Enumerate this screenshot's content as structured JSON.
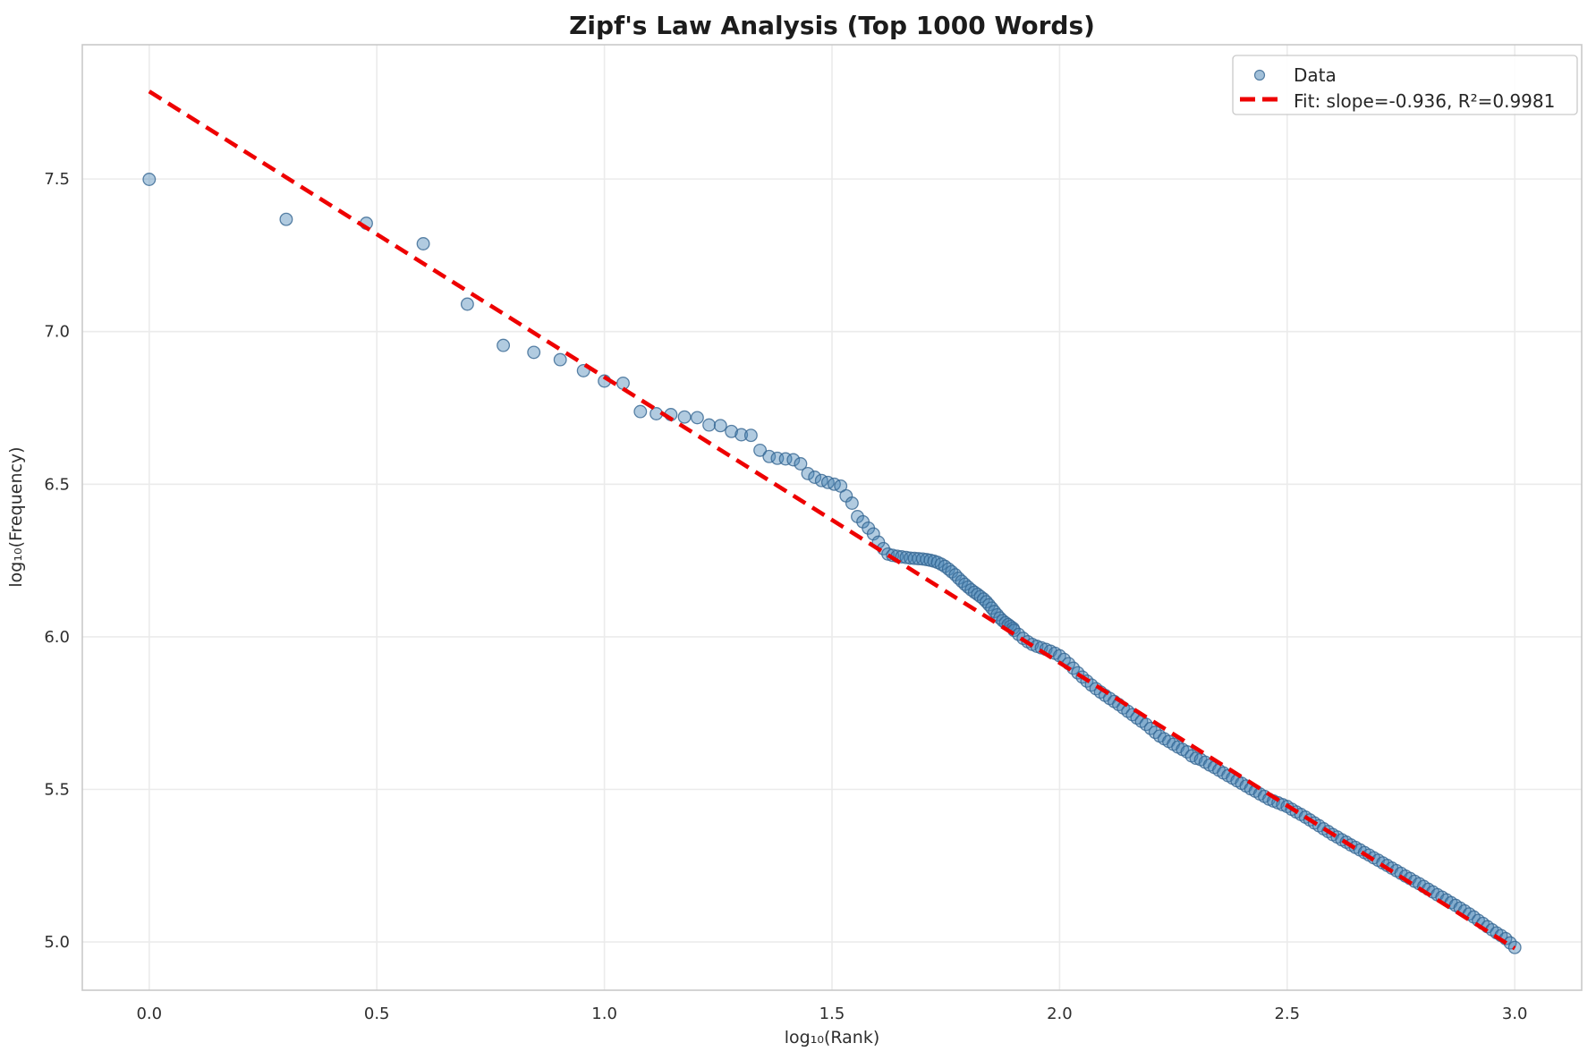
{
  "figure": {
    "title": "Zipf's Law Analysis (Top 1000 Words)"
  },
  "chart_data": {
    "type": "scatter",
    "title": "Zipf's Law Analysis (Top 1000 Words)",
    "xlabel": "log₁₀(Rank)",
    "ylabel": "log₁₀(Frequency)",
    "xlim": [
      -0.147,
      3.147
    ],
    "ylim": [
      4.842,
      7.94
    ],
    "x_ticks": [
      0.0,
      0.5,
      1.0,
      1.5,
      2.0,
      2.5,
      3.0
    ],
    "x_tick_labels": [
      "0.0",
      "0.5",
      "1.0",
      "1.5",
      "2.0",
      "2.5",
      "3.0"
    ],
    "y_ticks": [
      5.0,
      5.5,
      6.0,
      6.5,
      7.0,
      7.5
    ],
    "y_tick_labels": [
      "5.0",
      "5.5",
      "6.0",
      "6.5",
      "7.0",
      "7.5"
    ],
    "grid": true,
    "legend": {
      "position": "upper right",
      "entries": [
        {
          "label": "Data",
          "type": "marker"
        },
        {
          "label": "Fit: slope=-0.936, R²=0.9981",
          "type": "dashed-line"
        }
      ]
    },
    "colors": {
      "scatter_fill": "rgba(70,130,180,0.42)",
      "scatter_edge": "rgba(52,101,145,0.8)",
      "fit_line": "#ee0000",
      "grid": "#ebebeb",
      "spine": "#c9c9c9",
      "text": "#2e2e2e",
      "title": "#1c1c1c"
    },
    "series": [
      {
        "name": "Data",
        "type": "scatter",
        "marker": "circle",
        "marker_radius_px": 6.8,
        "points": [
          [
            0.0,
            7.499
          ],
          [
            0.301,
            7.368
          ],
          [
            0.477,
            7.355
          ],
          [
            0.602,
            7.288
          ],
          [
            0.699,
            7.09
          ],
          [
            0.778,
            6.955
          ],
          [
            0.845,
            6.932
          ],
          [
            0.903,
            6.908
          ],
          [
            0.954,
            6.872
          ],
          [
            1.0,
            6.838
          ],
          [
            1.041,
            6.831
          ],
          [
            1.079,
            6.738
          ],
          [
            1.114,
            6.731
          ],
          [
            1.146,
            6.728
          ],
          [
            1.176,
            6.72
          ],
          [
            1.204,
            6.718
          ],
          [
            1.23,
            6.694
          ],
          [
            1.255,
            6.692
          ],
          [
            1.279,
            6.673
          ],
          [
            1.301,
            6.662
          ],
          [
            1.322,
            6.66
          ],
          [
            1.342,
            6.611
          ],
          [
            1.362,
            6.591
          ],
          [
            1.38,
            6.585
          ],
          [
            1.398,
            6.583
          ],
          [
            1.415,
            6.58
          ],
          [
            1.431,
            6.567
          ],
          [
            1.447,
            6.535
          ],
          [
            1.462,
            6.523
          ],
          [
            1.477,
            6.512
          ],
          [
            1.491,
            6.506
          ],
          [
            1.505,
            6.5
          ],
          [
            1.519,
            6.494
          ],
          [
            1.531,
            6.462
          ],
          [
            1.544,
            6.438
          ],
          [
            1.556,
            6.394
          ],
          [
            1.568,
            6.377
          ],
          [
            1.58,
            6.356
          ],
          [
            1.591,
            6.337
          ],
          [
            1.602,
            6.31
          ],
          [
            1.613,
            6.289
          ],
          [
            1.623,
            6.271
          ],
          [
            1.633,
            6.267
          ],
          [
            1.643,
            6.264
          ],
          [
            1.653,
            6.262
          ],
          [
            1.663,
            6.26
          ],
          [
            1.672,
            6.258
          ],
          [
            1.681,
            6.257
          ],
          [
            1.69,
            6.256
          ],
          [
            1.699,
            6.255
          ],
          [
            1.708,
            6.253
          ],
          [
            1.716,
            6.251
          ],
          [
            1.724,
            6.248
          ],
          [
            1.732,
            6.244
          ],
          [
            1.74,
            6.238
          ],
          [
            1.748,
            6.231
          ],
          [
            1.756,
            6.222
          ],
          [
            1.763,
            6.213
          ],
          [
            1.771,
            6.203
          ],
          [
            1.778,
            6.192
          ],
          [
            1.785,
            6.182
          ],
          [
            1.792,
            6.172
          ],
          [
            1.799,
            6.163
          ],
          [
            1.806,
            6.154
          ],
          [
            1.813,
            6.146
          ],
          [
            1.82,
            6.139
          ],
          [
            1.826,
            6.132
          ],
          [
            1.833,
            6.124
          ],
          [
            1.839,
            6.115
          ],
          [
            1.845,
            6.105
          ],
          [
            1.851,
            6.094
          ],
          [
            1.857,
            6.083
          ],
          [
            1.863,
            6.072
          ],
          [
            1.869,
            6.062
          ],
          [
            1.875,
            6.053
          ],
          [
            1.881,
            6.046
          ],
          [
            1.887,
            6.04
          ],
          [
            1.892,
            6.034
          ],
          [
            1.898,
            6.028
          ],
          [
            1.9,
            6.021
          ],
          [
            1.91,
            6.008
          ],
          [
            1.92,
            5.995
          ],
          [
            1.93,
            5.984
          ],
          [
            1.94,
            5.975
          ],
          [
            1.95,
            5.969
          ],
          [
            1.96,
            5.964
          ],
          [
            1.97,
            5.959
          ],
          [
            1.98,
            5.953
          ],
          [
            1.99,
            5.946
          ],
          [
            2.0,
            5.938
          ],
          [
            2.01,
            5.926
          ],
          [
            2.02,
            5.912
          ],
          [
            2.03,
            5.897
          ],
          [
            2.04,
            5.882
          ],
          [
            2.05,
            5.868
          ],
          [
            2.06,
            5.855
          ],
          [
            2.07,
            5.842
          ],
          [
            2.08,
            5.83
          ],
          [
            2.09,
            5.819
          ],
          [
            2.1,
            5.808
          ],
          [
            2.11,
            5.798
          ],
          [
            2.12,
            5.788
          ],
          [
            2.13,
            5.778
          ],
          [
            2.14,
            5.767
          ],
          [
            2.15,
            5.756
          ],
          [
            2.16,
            5.745
          ],
          [
            2.17,
            5.734
          ],
          [
            2.18,
            5.723
          ],
          [
            2.19,
            5.713
          ],
          [
            2.2,
            5.7
          ],
          [
            2.21,
            5.687
          ],
          [
            2.22,
            5.675
          ],
          [
            2.23,
            5.666
          ],
          [
            2.24,
            5.657
          ],
          [
            2.25,
            5.648
          ],
          [
            2.26,
            5.639
          ],
          [
            2.27,
            5.631
          ],
          [
            2.28,
            5.623
          ],
          [
            2.29,
            5.61
          ],
          [
            2.3,
            5.602
          ],
          [
            2.31,
            5.598
          ],
          [
            2.32,
            5.589
          ],
          [
            2.33,
            5.58
          ],
          [
            2.34,
            5.572
          ],
          [
            2.35,
            5.563
          ],
          [
            2.36,
            5.554
          ],
          [
            2.37,
            5.545
          ],
          [
            2.38,
            5.537
          ],
          [
            2.39,
            5.528
          ],
          [
            2.4,
            5.52
          ],
          [
            2.41,
            5.511
          ],
          [
            2.42,
            5.502
          ],
          [
            2.43,
            5.494
          ],
          [
            2.44,
            5.485
          ],
          [
            2.45,
            5.477
          ],
          [
            2.46,
            5.468
          ],
          [
            2.47,
            5.462
          ],
          [
            2.48,
            5.456
          ],
          [
            2.49,
            5.45
          ],
          [
            2.5,
            5.444
          ],
          [
            2.51,
            5.435
          ],
          [
            2.52,
            5.426
          ],
          [
            2.53,
            5.418
          ],
          [
            2.54,
            5.409
          ],
          [
            2.55,
            5.4
          ],
          [
            2.56,
            5.39
          ],
          [
            2.57,
            5.381
          ],
          [
            2.58,
            5.371
          ],
          [
            2.59,
            5.362
          ],
          [
            2.6,
            5.352
          ],
          [
            2.61,
            5.344
          ],
          [
            2.62,
            5.335
          ],
          [
            2.63,
            5.327
          ],
          [
            2.64,
            5.318
          ],
          [
            2.65,
            5.31
          ],
          [
            2.66,
            5.302
          ],
          [
            2.67,
            5.293
          ],
          [
            2.68,
            5.285
          ],
          [
            2.69,
            5.276
          ],
          [
            2.7,
            5.268
          ],
          [
            2.71,
            5.259
          ],
          [
            2.72,
            5.251
          ],
          [
            2.73,
            5.242
          ],
          [
            2.74,
            5.234
          ],
          [
            2.75,
            5.225
          ],
          [
            2.76,
            5.216
          ],
          [
            2.77,
            5.208
          ],
          [
            2.78,
            5.199
          ],
          [
            2.79,
            5.191
          ],
          [
            2.8,
            5.182
          ],
          [
            2.81,
            5.173
          ],
          [
            2.82,
            5.164
          ],
          [
            2.83,
            5.155
          ],
          [
            2.84,
            5.147
          ],
          [
            2.85,
            5.138
          ],
          [
            2.86,
            5.129
          ],
          [
            2.87,
            5.12
          ],
          [
            2.88,
            5.111
          ],
          [
            2.89,
            5.102
          ],
          [
            2.9,
            5.092
          ],
          [
            2.91,
            5.082
          ],
          [
            2.92,
            5.071
          ],
          [
            2.93,
            5.061
          ],
          [
            2.94,
            5.05
          ],
          [
            2.95,
            5.04
          ],
          [
            2.96,
            5.03
          ],
          [
            2.97,
            5.021
          ],
          [
            2.98,
            5.011
          ],
          [
            2.99,
            4.997
          ],
          [
            3.0,
            4.982
          ]
        ]
      },
      {
        "name": "Fit: slope=-0.936, R²=0.9981",
        "type": "line",
        "style": "dashed",
        "slope": -0.936,
        "intercept": 7.787,
        "r_squared": 0.9981,
        "endpoints": [
          [
            0.0,
            7.787
          ],
          [
            3.0,
            4.979
          ]
        ]
      }
    ]
  }
}
